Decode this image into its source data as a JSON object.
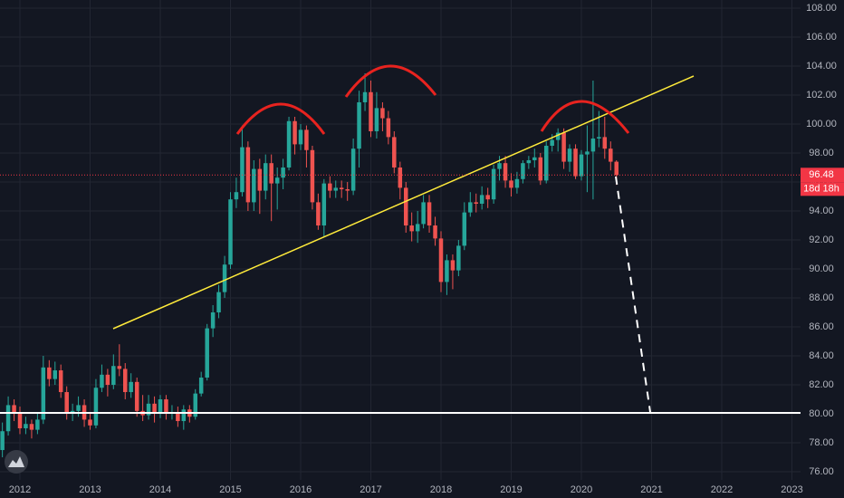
{
  "chart_data": {
    "type": "candlestick",
    "up_color": "#26a69a",
    "down_color": "#ef5350",
    "grid": true,
    "xlim": [
      2011.716,
      2023.123
    ],
    "xticks": [
      2012,
      2013,
      2014,
      2015,
      2016,
      2017,
      2018,
      2019,
      2020,
      2021,
      2022,
      2023
    ],
    "ylim": [
      75.44,
      108.56
    ],
    "yticks": [
      {
        "value": 76,
        "label": "76.00"
      },
      {
        "value": 78,
        "label": "78.00"
      },
      {
        "value": 80,
        "label": "80.00"
      },
      {
        "value": 82,
        "label": "82.00"
      },
      {
        "value": 84,
        "label": "84.00"
      },
      {
        "value": 86,
        "label": "86.00"
      },
      {
        "value": 88,
        "label": "88.00"
      },
      {
        "value": 90,
        "label": "90.00"
      },
      {
        "value": 92,
        "label": "92.00"
      },
      {
        "value": 94,
        "label": "94.00"
      },
      {
        "value": 96,
        "label": "96.00"
      },
      {
        "value": 98,
        "label": "98.00"
      },
      {
        "value": 100,
        "label": "100.00"
      },
      {
        "value": 102,
        "label": "102.00"
      },
      {
        "value": 104,
        "label": "104.00"
      },
      {
        "value": 106,
        "label": "106.00"
      },
      {
        "value": 108,
        "label": "108.00"
      }
    ],
    "last_price": 96.48,
    "last_price_color": "#f23645",
    "countdown": "18d 18h",
    "x": [
      2011.75,
      2011.833,
      2011.917,
      2012,
      2012.083,
      2012.167,
      2012.25,
      2012.333,
      2012.417,
      2012.5,
      2012.583,
      2012.667,
      2012.75,
      2012.833,
      2012.917,
      2013,
      2013.083,
      2013.167,
      2013.25,
      2013.333,
      2013.417,
      2013.5,
      2013.583,
      2013.667,
      2013.75,
      2013.833,
      2013.917,
      2014,
      2014.083,
      2014.167,
      2014.25,
      2014.333,
      2014.417,
      2014.5,
      2014.583,
      2014.667,
      2014.75,
      2014.833,
      2014.917,
      2015,
      2015.083,
      2015.167,
      2015.25,
      2015.333,
      2015.417,
      2015.5,
      2015.583,
      2015.667,
      2015.75,
      2015.833,
      2015.917,
      2016,
      2016.083,
      2016.167,
      2016.25,
      2016.333,
      2016.417,
      2016.5,
      2016.583,
      2016.667,
      2016.75,
      2016.833,
      2016.917,
      2017,
      2017.083,
      2017.167,
      2017.25,
      2017.333,
      2017.417,
      2017.5,
      2017.583,
      2017.667,
      2017.75,
      2017.833,
      2017.917,
      2018,
      2018.083,
      2018.167,
      2018.25,
      2018.333,
      2018.417,
      2018.5,
      2018.583,
      2018.667,
      2018.75,
      2018.833,
      2018.917,
      2019,
      2019.083,
      2019.167,
      2019.25,
      2019.333,
      2019.417,
      2019.5,
      2019.583,
      2019.667,
      2019.75,
      2019.833,
      2019.917,
      2020,
      2020.083,
      2020.167,
      2020.25,
      2020.333,
      2020.417,
      2020.5
    ],
    "open": [
      77.5,
      78.8,
      80.6,
      80.0,
      79.0,
      79.3,
      78.9,
      79.6,
      83.2,
      82.4,
      83.0,
      81.5,
      80.0,
      80.2,
      80.6,
      79.6,
      79.2,
      81.8,
      82.7,
      82.0,
      83.3,
      83.1,
      81.5,
      82.2,
      80.2,
      79.9,
      80.7,
      80.0,
      81.0,
      80.0,
      80.1,
      79.5,
      80.3,
      79.8,
      81.4,
      82.5,
      85.9,
      87.0,
      88.4,
      90.3,
      94.8,
      95.3,
      98.4,
      94.6,
      96.9,
      95.4,
      97.3,
      95.9,
      96.3,
      97.0,
      100.2,
      98.6,
      99.6,
      98.2,
      94.6,
      93.0,
      95.9,
      95.4,
      95.6,
      95.5,
      95.4,
      98.3,
      101.5,
      102.2,
      99.5,
      101.1,
      100.4,
      99.1,
      97.0,
      95.6,
      93.0,
      92.6,
      93.1,
      94.6,
      93.0,
      92.1,
      89.1,
      90.6,
      89.9,
      91.6,
      93.9,
      94.6,
      94.5,
      95.1,
      94.8,
      96.9,
      97.3,
      96.1,
      95.6,
      96.2,
      97.3,
      97.5,
      97.7,
      96.1,
      98.5,
      98.9,
      99.4,
      97.4,
      98.3,
      96.4,
      97.9,
      98.1,
      99.0,
      99.1,
      98.3,
      97.4
    ],
    "high": [
      79.4,
      81.2,
      81.0,
      80.5,
      79.8,
      79.6,
      80.1,
      84.0,
      83.7,
      83.6,
      83.4,
      81.9,
      80.7,
      81.2,
      81.0,
      80.0,
      82.4,
      83.4,
      83.1,
      84.1,
      84.8,
      83.5,
      82.8,
      82.5,
      81.3,
      81.3,
      81.2,
      81.3,
      81.3,
      80.6,
      80.5,
      80.6,
      80.6,
      81.7,
      82.9,
      86.2,
      87.5,
      88.9,
      90.9,
      95.3,
      96.3,
      99.9,
      98.8,
      97.5,
      97.6,
      97.9,
      97.9,
      97.0,
      97.6,
      100.5,
      100.5,
      100.0,
      99.9,
      98.5,
      95.2,
      96.2,
      96.4,
      96.1,
      96.1,
      96.0,
      99.0,
      102.3,
      103.5,
      103.0,
      102.2,
      101.5,
      100.9,
      99.5,
      97.4,
      96.0,
      93.9,
      94.0,
      95.1,
      95.1,
      93.6,
      92.6,
      91.0,
      91.0,
      92.0,
      94.6,
      95.3,
      95.2,
      95.7,
      95.6,
      97.2,
      97.8,
      97.8,
      96.6,
      96.7,
      97.5,
      97.8,
      98.3,
      98.0,
      98.8,
      99.3,
      99.7,
      99.7,
      98.6,
      98.6,
      98.2,
      99.9,
      103.0,
      100.9,
      100.5,
      98.8,
      97.5
    ],
    "low": [
      77.0,
      78.5,
      79.5,
      78.6,
      78.6,
      78.3,
      78.6,
      79.3,
      81.9,
      82.0,
      81.1,
      79.6,
      79.5,
      79.8,
      79.1,
      78.9,
      79.0,
      81.5,
      81.2,
      81.7,
      82.6,
      81.0,
      81.1,
      79.8,
      79.5,
      79.6,
      79.4,
      79.7,
      79.6,
      79.6,
      79.1,
      78.9,
      79.4,
      79.6,
      81.2,
      82.3,
      85.3,
      86.6,
      88.0,
      90.0,
      94.2,
      95.0,
      94.0,
      94.0,
      93.8,
      94.8,
      93.3,
      94.1,
      95.5,
      96.8,
      97.9,
      98.2,
      97.0,
      94.1,
      92.7,
      92.2,
      94.9,
      94.9,
      94.9,
      94.7,
      95.1,
      97.0,
      100.9,
      99.1,
      99.0,
      99.5,
      98.6,
      96.6,
      94.8,
      92.5,
      91.9,
      91.8,
      92.8,
      92.5,
      91.6,
      88.4,
      88.2,
      88.6,
      89.5,
      91.3,
      93.6,
      93.9,
      94.1,
      94.2,
      94.5,
      96.1,
      95.6,
      95.0,
      95.2,
      95.9,
      96.9,
      97.0,
      95.8,
      95.9,
      98.1,
      98.1,
      96.9,
      96.7,
      96.2,
      96.1,
      95.3,
      94.8,
      98.4,
      97.6,
      96.8,
      95.8
    ],
    "close": [
      78.8,
      80.6,
      80.0,
      79.0,
      79.3,
      78.9,
      79.6,
      83.2,
      82.4,
      83.0,
      81.5,
      80.0,
      80.2,
      80.6,
      79.6,
      79.2,
      81.8,
      82.7,
      82.0,
      83.3,
      83.1,
      81.5,
      82.2,
      80.2,
      79.9,
      80.7,
      80.0,
      81.0,
      80.0,
      80.1,
      79.5,
      80.3,
      79.8,
      81.4,
      82.5,
      85.9,
      87.0,
      88.4,
      90.3,
      94.8,
      95.3,
      98.4,
      94.6,
      96.9,
      95.4,
      97.3,
      95.9,
      96.3,
      97.0,
      100.2,
      98.6,
      99.6,
      98.2,
      94.6,
      93.0,
      95.9,
      95.4,
      95.6,
      95.5,
      95.4,
      98.3,
      101.5,
      102.2,
      99.5,
      101.1,
      100.4,
      99.1,
      97.0,
      95.6,
      93.0,
      92.6,
      93.1,
      94.6,
      93.0,
      92.1,
      89.1,
      90.6,
      89.9,
      91.6,
      93.9,
      94.6,
      94.5,
      95.1,
      94.8,
      96.9,
      97.3,
      96.1,
      95.6,
      96.2,
      97.3,
      97.5,
      97.7,
      96.1,
      98.5,
      98.9,
      99.4,
      97.4,
      98.3,
      96.4,
      97.9,
      98.1,
      99.0,
      99.1,
      98.3,
      97.4,
      96.48
    ]
  }
}
